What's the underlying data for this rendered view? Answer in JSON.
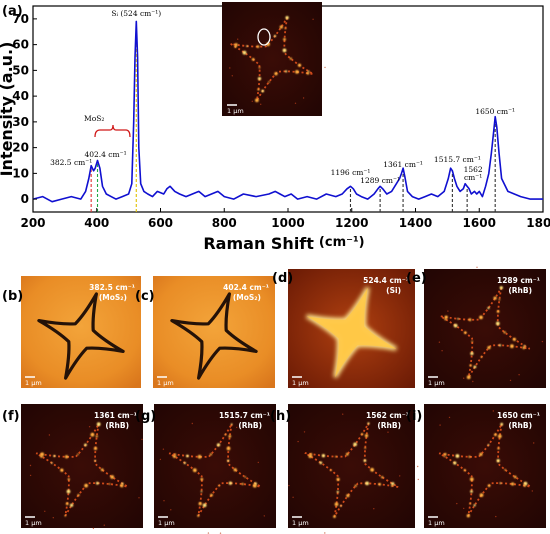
{
  "chart_data": {
    "type": "line",
    "panel_letter": "(a)",
    "xlabel": "Raman Shift",
    "xlabel_unit": "(cm⁻¹)",
    "ylabel": "Intensity (a.u.)",
    "xlim": [
      200,
      1800
    ],
    "ylim": [
      -5,
      75
    ],
    "xticks": [
      200,
      400,
      600,
      800,
      1000,
      1200,
      1400,
      1600,
      1800
    ],
    "yticks": [
      0,
      10,
      20,
      30,
      40,
      50,
      60,
      70
    ],
    "grid": false,
    "line_color": "#1010d0",
    "series": [
      {
        "x": [
          200,
          230,
          260,
          290,
          320,
          350,
          365,
          375,
          382.5,
          390,
          395,
          402.4,
          410,
          418,
          430,
          445,
          460,
          480,
          500,
          510,
          516,
          520,
          524,
          528,
          532,
          538,
          548,
          560,
          575,
          590,
          610,
          620,
          630,
          645,
          660,
          680,
          700,
          720,
          740,
          760,
          780,
          800,
          830,
          860,
          900,
          940,
          960,
          975,
          990,
          1010,
          1030,
          1060,
          1090,
          1120,
          1150,
          1170,
          1185,
          1196,
          1205,
          1215,
          1230,
          1250,
          1270,
          1282,
          1289,
          1297,
          1310,
          1325,
          1340,
          1350,
          1356,
          1361,
          1366,
          1375,
          1390,
          1410,
          1430,
          1450,
          1470,
          1490,
          1503,
          1510,
          1515.7,
          1522,
          1530,
          1540,
          1550,
          1556,
          1562,
          1568,
          1575,
          1585,
          1592,
          1600,
          1610,
          1620,
          1630,
          1638,
          1645,
          1650,
          1655,
          1662,
          1670,
          1690,
          1710,
          1730,
          1760,
          1800
        ],
        "y": [
          0,
          1,
          -1,
          0,
          1,
          0,
          3,
          8,
          13,
          11,
          12,
          15,
          12,
          5,
          2,
          1,
          0,
          1,
          2,
          6,
          30,
          55,
          69,
          55,
          20,
          6,
          3,
          2,
          1,
          3,
          2,
          4,
          5,
          3,
          2,
          1,
          2,
          3,
          1,
          2,
          3,
          1,
          0,
          2,
          1,
          2,
          3,
          2,
          1,
          2,
          0,
          1,
          0,
          2,
          1,
          2,
          4,
          5,
          4,
          2,
          1,
          0,
          2,
          4,
          5,
          4,
          2,
          3,
          6,
          8,
          10,
          12,
          9,
          3,
          1,
          0,
          1,
          2,
          1,
          3,
          8,
          12,
          11,
          8,
          5,
          3,
          4,
          6,
          5,
          4,
          2,
          3,
          2,
          3,
          1,
          5,
          10,
          18,
          26,
          32,
          28,
          18,
          8,
          3,
          2,
          1,
          0,
          0
        ]
      }
    ],
    "annotations": [
      {
        "text": "Sᵢ (524 cm⁻¹)",
        "x": 524
      },
      {
        "text": "MoS₂",
        "x": 392
      },
      {
        "text": "382.5 cm⁻¹",
        "x": 382.5
      },
      {
        "text": "402.4 cm⁻¹",
        "x": 402.4
      },
      {
        "text": "1196 cm⁻¹",
        "x": 1196
      },
      {
        "text": "1289 cm⁻¹",
        "x": 1289
      },
      {
        "text": "1361 cm⁻¹",
        "x": 1361
      },
      {
        "text": "1515.7 cm⁻¹",
        "x": 1515.7
      },
      {
        "text": "1562 cm⁻¹",
        "x": 1562
      },
      {
        "text": "1650 cm⁻¹",
        "x": 1650
      }
    ],
    "marker_lines": [
      {
        "x": 382.5,
        "color": "#e03030"
      },
      {
        "x": 402.4,
        "color": "#22aa44"
      },
      {
        "x": 524,
        "color": "#e0c000"
      },
      {
        "x": 1196,
        "color": "#333333"
      },
      {
        "x": 1289,
        "color": "#333333"
      },
      {
        "x": 1361,
        "color": "#333333"
      },
      {
        "x": 1515.7,
        "color": "#333333"
      },
      {
        "x": 1562,
        "color": "#333333"
      },
      {
        "x": 1650,
        "color": "#333333"
      }
    ]
  },
  "inset": {
    "scale_label": "1 μm"
  },
  "images": [
    {
      "letter": "(b)",
      "line1": "382.5 cm⁻¹",
      "line2": "(MoS₂)",
      "scale": "1 μm",
      "theme": "orange"
    },
    {
      "letter": "(c)",
      "line1": "402.4 cm⁻¹",
      "line2": "(MoS₂)",
      "scale": "1 μm",
      "theme": "orange"
    },
    {
      "letter": "(d)",
      "line1": "524.4 cm⁻¹",
      "line2": "(Si)",
      "scale": "1 μm",
      "theme": "si"
    },
    {
      "letter": "(e)",
      "line1": "1289 cm⁻¹",
      "line2": "(RhB)",
      "scale": "1 μm",
      "theme": "dark"
    },
    {
      "letter": "(f)",
      "line1": "1361 cm⁻¹",
      "line2": "(RhB)",
      "scale": "1 μm",
      "theme": "dark"
    },
    {
      "letter": "(g)",
      "line1": "1515.7 cm⁻¹",
      "line2": "(RhB)",
      "scale": "1 μm",
      "theme": "dark"
    },
    {
      "letter": "(h)",
      "line1": "1562 cm⁻¹",
      "line2": "(RhB)",
      "scale": "1 μm",
      "theme": "dark"
    },
    {
      "letter": "(i)",
      "line1": "1650 cm⁻¹",
      "line2": "(RhB)",
      "scale": "1 μm",
      "theme": "dark"
    }
  ]
}
